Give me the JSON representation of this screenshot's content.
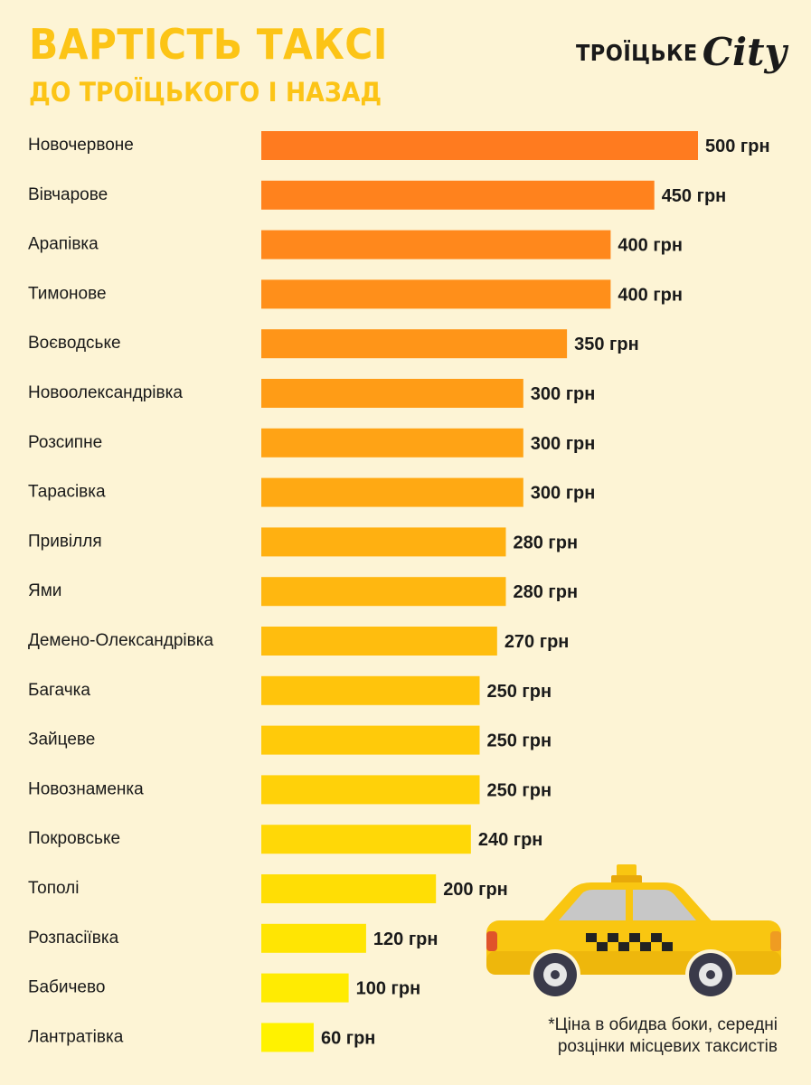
{
  "header": {
    "title": "ВАРТІСТЬ ТАКСІ",
    "subtitle": "ДО ТРОЇЦЬКОГО І НАЗАД"
  },
  "logo": {
    "name": "ТРОЇЦЬКЕ",
    "city": "City"
  },
  "note": {
    "line1": "*Ціна в обидва боки, середні",
    "line2": "розцінки місцевих таксистів"
  },
  "colors": {
    "background": "#fdf4d5",
    "title": "#fcc416",
    "bar_top": "#ff7b1f",
    "bar_bottom": "#fff200",
    "taxi_body": "#f9c611"
  },
  "icons": [
    "taxi-icon"
  ],
  "chart_data": {
    "type": "bar",
    "orientation": "horizontal",
    "unit": "грн",
    "categories": [
      "Новочервоне",
      "Вівчарове",
      "Арапівка",
      "Тимонове",
      "Воєводське",
      "Новоолександрівка",
      "Розсипне",
      "Тарасівка",
      "Привілля",
      "Ями",
      "Демено-Олександрівка",
      "Багачка",
      "Зайцеве",
      "Новознаменка",
      "Покровське",
      "Тополі",
      "Розпасіївка",
      "Бабичево",
      "Лантратівка"
    ],
    "values": [
      500,
      450,
      400,
      400,
      350,
      300,
      300,
      300,
      280,
      280,
      270,
      250,
      250,
      250,
      240,
      200,
      120,
      100,
      60
    ],
    "value_labels": [
      "500 грн",
      "450 грн",
      "400 грн",
      "400 грн",
      "350 грн",
      "300 грн",
      "300 грн",
      "300 грн",
      "280 грн",
      "280 грн",
      "270 грн",
      "250 грн",
      "250 грн",
      "250 грн",
      "240 грн",
      "200 грн",
      "120 грн",
      "100 грн",
      "60 грн"
    ],
    "xlim": [
      0,
      500
    ],
    "grid": false,
    "legend": "none"
  }
}
